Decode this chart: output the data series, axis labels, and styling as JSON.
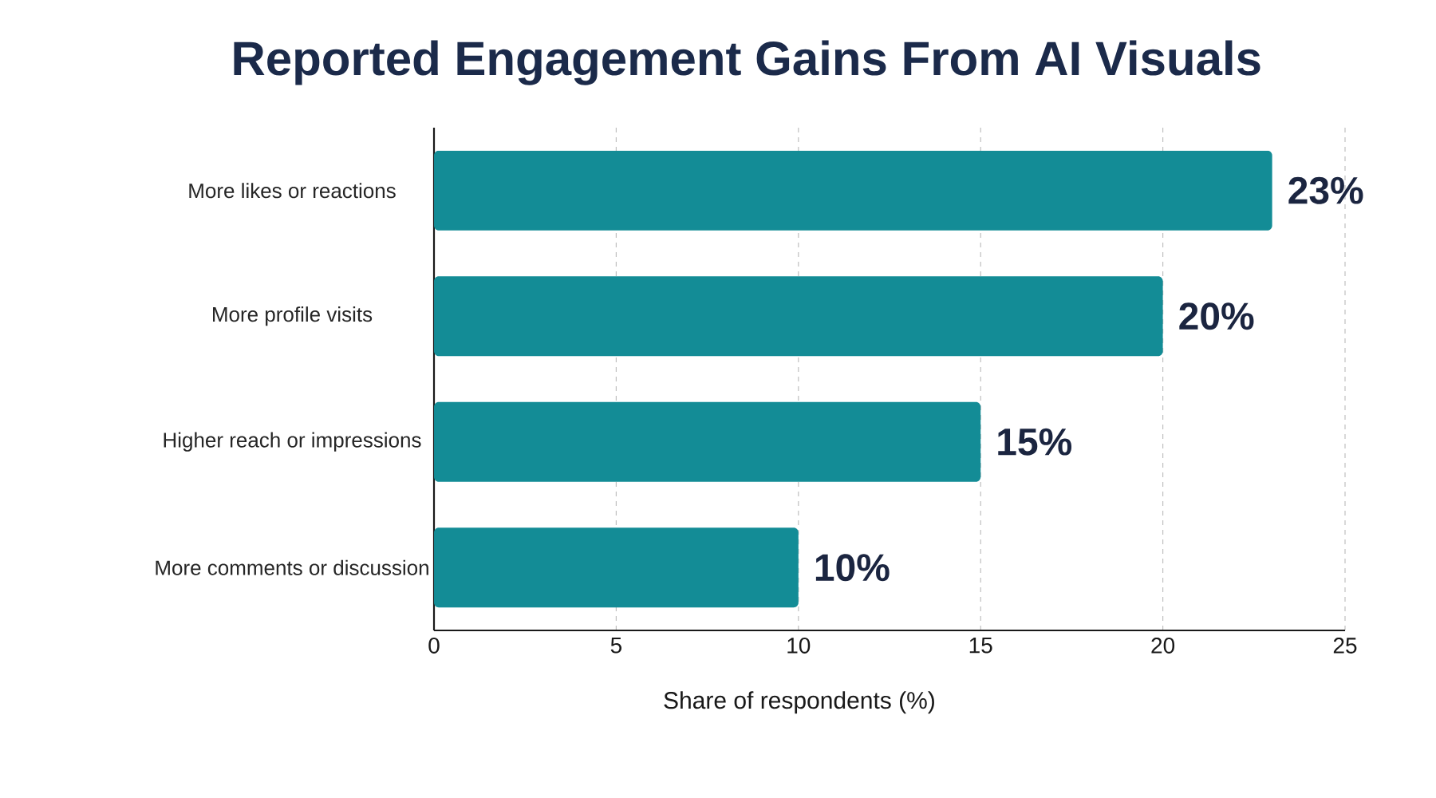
{
  "chart_data": {
    "type": "bar",
    "orientation": "horizontal",
    "title": "Reported Engagement Gains From AI Visuals",
    "xlabel": "Share of respondents (%)",
    "categories": [
      "More likes or reactions",
      "More profile visits",
      "Higher reach or impressions",
      "More comments or discussion"
    ],
    "values": [
      23,
      20,
      15,
      10
    ],
    "value_labels": [
      "23%",
      "20%",
      "15%",
      "10%"
    ],
    "color": "#138c96",
    "xlim": [
      0,
      25
    ],
    "xticks": [
      0,
      5,
      10,
      15,
      20,
      25
    ],
    "grid": "x"
  }
}
